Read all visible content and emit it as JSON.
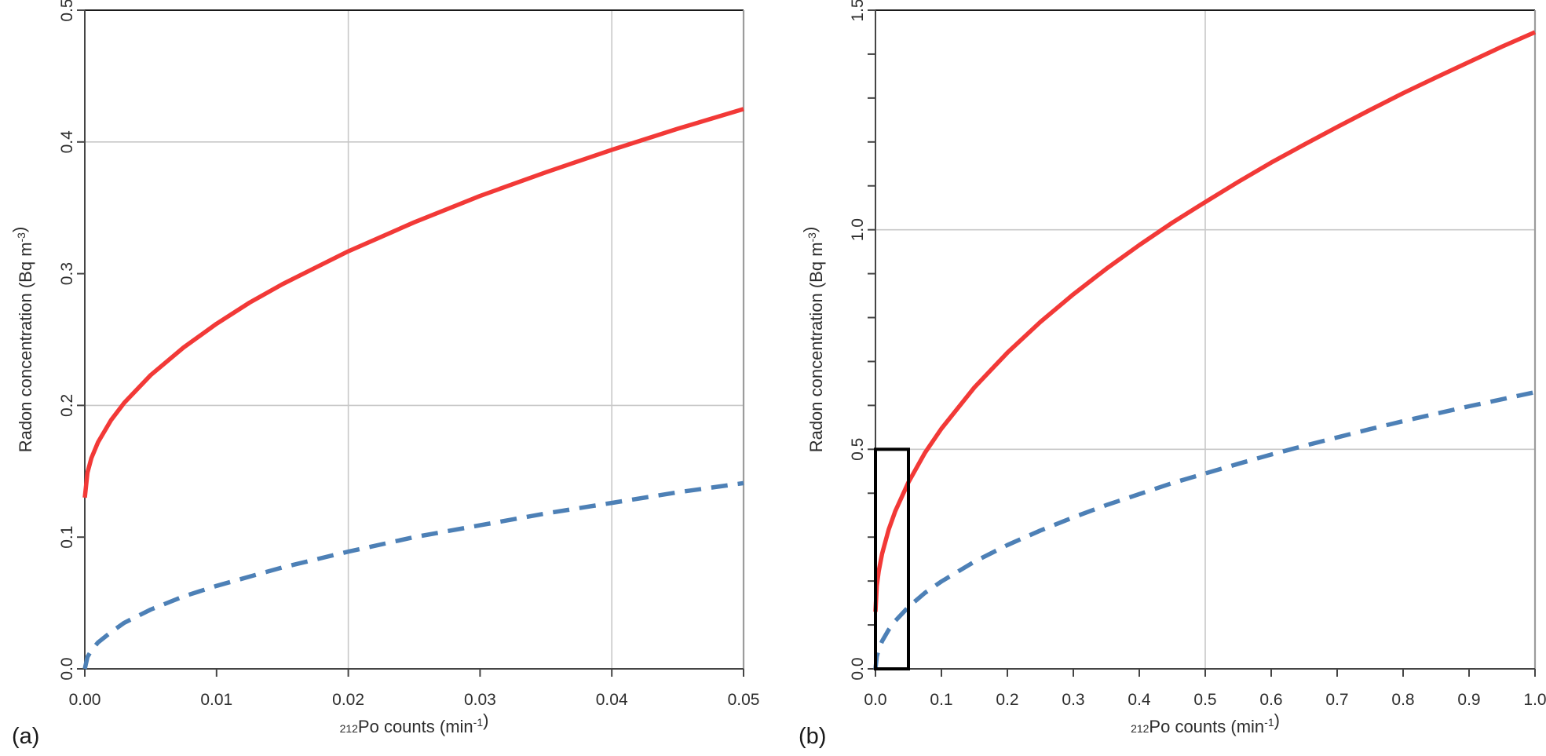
{
  "figure": {
    "background": "#ffffff",
    "colors": {
      "red_curve": "#f23937",
      "blue_curve": "#4d80b6",
      "grid": "#c8c8c8",
      "right_border": "#9c9c9c",
      "top_border": "#1a1a1a",
      "axis": "#454545",
      "text": "#2d2d2d",
      "zoom_box": "#000000"
    }
  },
  "panel_letters": {
    "a": "(a)",
    "b": "(b)"
  },
  "chart_data": [
    {
      "id": "panel-a",
      "panel_label": "(a)",
      "type": "line",
      "xlabel_parts": [
        {
          "t": "212",
          "sup": true
        },
        {
          "t": "Po counts (min",
          "sup": false
        },
        {
          "t": "-1",
          "sup": true
        },
        {
          "t": ")",
          "sup": false
        }
      ],
      "ylabel_parts": [
        {
          "t": "Radon concentration (Bq m",
          "sup": false
        },
        {
          "t": "-3",
          "sup": true
        },
        {
          "t": ")",
          "sup": false
        }
      ],
      "xlim": [
        0,
        0.05
      ],
      "ylim": [
        0,
        0.5
      ],
      "x_ticks": [
        {
          "v": 0.0,
          "label": "0.00"
        },
        {
          "v": 0.01,
          "label": "0.01"
        },
        {
          "v": 0.02,
          "label": "0.02"
        },
        {
          "v": 0.03,
          "label": "0.03"
        },
        {
          "v": 0.04,
          "label": "0.04"
        },
        {
          "v": 0.05,
          "label": "0.05"
        }
      ],
      "y_ticks": [
        {
          "v": 0.0,
          "label": "0.0"
        },
        {
          "v": 0.1,
          "label": "0.1"
        },
        {
          "v": 0.2,
          "label": "0.2"
        },
        {
          "v": 0.3,
          "label": "0.3"
        },
        {
          "v": 0.4,
          "label": "0.4"
        },
        {
          "v": 0.5,
          "label": "0.5"
        }
      ],
      "grid_x": [
        0.02,
        0.04
      ],
      "grid_y": [
        0.2,
        0.4
      ],
      "series": [
        {
          "name": "red-solid-curve",
          "color": "#f23937",
          "style": "solid",
          "x": [
            0,
            0.0002,
            0.0005,
            0.001,
            0.002,
            0.003,
            0.005,
            0.0075,
            0.01,
            0.0125,
            0.015,
            0.02,
            0.025,
            0.03,
            0.035,
            0.04,
            0.045,
            0.05
          ],
          "y": [
            0.13,
            0.149,
            0.16,
            0.172,
            0.189,
            0.202,
            0.223,
            0.244,
            0.262,
            0.278,
            0.292,
            0.317,
            0.339,
            0.359,
            0.377,
            0.394,
            0.41,
            0.425
          ]
        },
        {
          "name": "blue-dashed-curve",
          "color": "#4d80b6",
          "style": "dashed",
          "x": [
            0,
            0.0002,
            0.0005,
            0.001,
            0.002,
            0.003,
            0.005,
            0.0075,
            0.01,
            0.0125,
            0.015,
            0.02,
            0.025,
            0.03,
            0.035,
            0.04,
            0.045,
            0.05
          ],
          "y": [
            0,
            0.009,
            0.014,
            0.02,
            0.028,
            0.035,
            0.045,
            0.055,
            0.063,
            0.07,
            0.077,
            0.089,
            0.1,
            0.109,
            0.118,
            0.126,
            0.134,
            0.141
          ]
        }
      ]
    },
    {
      "id": "panel-b",
      "panel_label": "(b)",
      "type": "line",
      "xlabel_parts": [
        {
          "t": "212",
          "sup": true
        },
        {
          "t": "Po counts (min",
          "sup": false
        },
        {
          "t": "-1",
          "sup": true
        },
        {
          "t": ")",
          "sup": false
        }
      ],
      "ylabel_parts": [
        {
          "t": "Radon concentration (Bq m",
          "sup": false
        },
        {
          "t": "-3",
          "sup": true
        },
        {
          "t": ")",
          "sup": false
        }
      ],
      "xlim": [
        0,
        1.0
      ],
      "ylim": [
        0,
        1.5
      ],
      "x_ticks": [
        {
          "v": 0.0,
          "label": "0.0"
        },
        {
          "v": 0.1,
          "label": "0.1"
        },
        {
          "v": 0.2,
          "label": "0.2"
        },
        {
          "v": 0.3,
          "label": "0.3"
        },
        {
          "v": 0.4,
          "label": "0.4"
        },
        {
          "v": 0.5,
          "label": "0.5"
        },
        {
          "v": 0.6,
          "label": "0.6"
        },
        {
          "v": 0.7,
          "label": "0.7"
        },
        {
          "v": 0.8,
          "label": "0.8"
        },
        {
          "v": 0.9,
          "label": "0.9"
        },
        {
          "v": 1.0,
          "label": "1.0"
        }
      ],
      "y_ticks": [
        {
          "v": 0.0,
          "label": "0.0"
        },
        {
          "v": 0.1
        },
        {
          "v": 0.2
        },
        {
          "v": 0.3
        },
        {
          "v": 0.4
        },
        {
          "v": 0.5,
          "label": "0.5"
        },
        {
          "v": 0.6
        },
        {
          "v": 0.7
        },
        {
          "v": 0.8
        },
        {
          "v": 0.9
        },
        {
          "v": 1.0,
          "label": "1.0"
        },
        {
          "v": 1.1
        },
        {
          "v": 1.2
        },
        {
          "v": 1.3
        },
        {
          "v": 1.4
        },
        {
          "v": 1.5,
          "label": "1.5"
        }
      ],
      "grid_x": [
        0.5
      ],
      "grid_y": [
        0.5,
        1.0
      ],
      "zoom_box": {
        "x": [
          0,
          0.05
        ],
        "y": [
          0,
          0.5
        ]
      },
      "series": [
        {
          "name": "red-solid-curve",
          "color": "#f23937",
          "style": "solid",
          "x": [
            0,
            0.002,
            0.005,
            0.01,
            0.02,
            0.03,
            0.05,
            0.075,
            0.1,
            0.15,
            0.2,
            0.25,
            0.3,
            0.35,
            0.4,
            0.45,
            0.5,
            0.55,
            0.6,
            0.65,
            0.7,
            0.75,
            0.8,
            0.85,
            0.9,
            0.95,
            1.0
          ],
          "y": [
            0.13,
            0.189,
            0.223,
            0.262,
            0.317,
            0.359,
            0.425,
            0.492,
            0.547,
            0.641,
            0.72,
            0.79,
            0.853,
            0.911,
            0.965,
            1.016,
            1.063,
            1.109,
            1.153,
            1.194,
            1.234,
            1.273,
            1.311,
            1.347,
            1.382,
            1.417,
            1.45
          ]
        },
        {
          "name": "blue-dashed-curve",
          "color": "#4d80b6",
          "style": "dashed",
          "x": [
            0,
            0.002,
            0.005,
            0.01,
            0.02,
            0.03,
            0.05,
            0.075,
            0.1,
            0.15,
            0.2,
            0.25,
            0.3,
            0.35,
            0.4,
            0.45,
            0.5,
            0.55,
            0.6,
            0.65,
            0.7,
            0.75,
            0.8,
            0.85,
            0.9,
            0.95,
            1.0
          ],
          "y": [
            0,
            0.028,
            0.045,
            0.063,
            0.089,
            0.109,
            0.141,
            0.173,
            0.199,
            0.244,
            0.282,
            0.315,
            0.345,
            0.373,
            0.398,
            0.423,
            0.445,
            0.467,
            0.488,
            0.508,
            0.527,
            0.546,
            0.564,
            0.581,
            0.598,
            0.614,
            0.63
          ]
        }
      ]
    }
  ]
}
